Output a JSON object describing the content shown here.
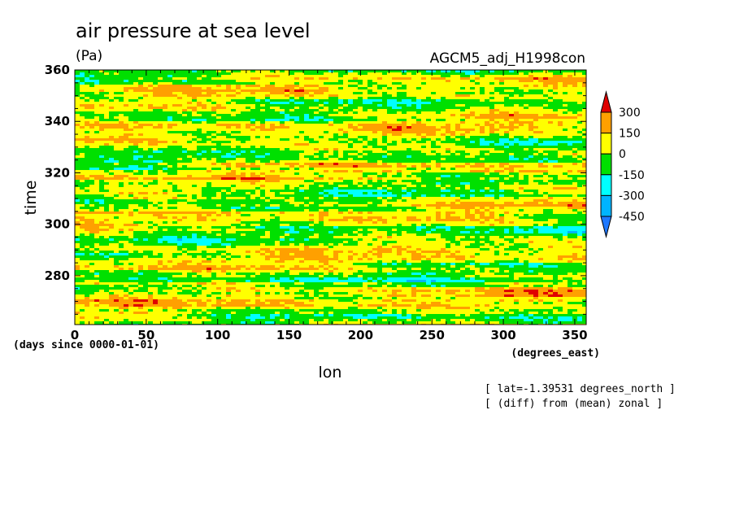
{
  "chart_data": {
    "type": "heatmap",
    "title": "air pressure at sea level",
    "units": "(Pa)",
    "dataset": "AGCM5_adj_H1998con",
    "xlabel": "lon",
    "xunits": "(degrees_east)",
    "ylabel": "time",
    "yunits": "(days since 0000-01-01)",
    "xlim": [
      0,
      358
    ],
    "ylim": [
      261,
      360
    ],
    "xticks": [
      0,
      50,
      100,
      150,
      200,
      250,
      300,
      350
    ],
    "yticks": [
      280,
      300,
      320,
      340,
      360
    ],
    "xtick_labels": [
      "0",
      "50",
      "100",
      "150",
      "200",
      "250",
      "300",
      "350"
    ],
    "ytick_labels": [
      "280",
      "300",
      "320",
      "340",
      "360"
    ],
    "notes": [
      "[ lat=-1.39531 degrees_north ]",
      "[ (diff) from (mean) zonal ]"
    ],
    "colorbar": {
      "levels": [
        -450,
        -300,
        -150,
        0,
        150,
        300
      ],
      "labels": [
        "300",
        "150",
        "0",
        "-150",
        "-300",
        "-450"
      ],
      "colors": [
        "#1e78ff",
        "#00b4ff",
        "#00ffff",
        "#00e000",
        "#ffff00",
        "#ffa000",
        "#e00000"
      ]
    }
  }
}
